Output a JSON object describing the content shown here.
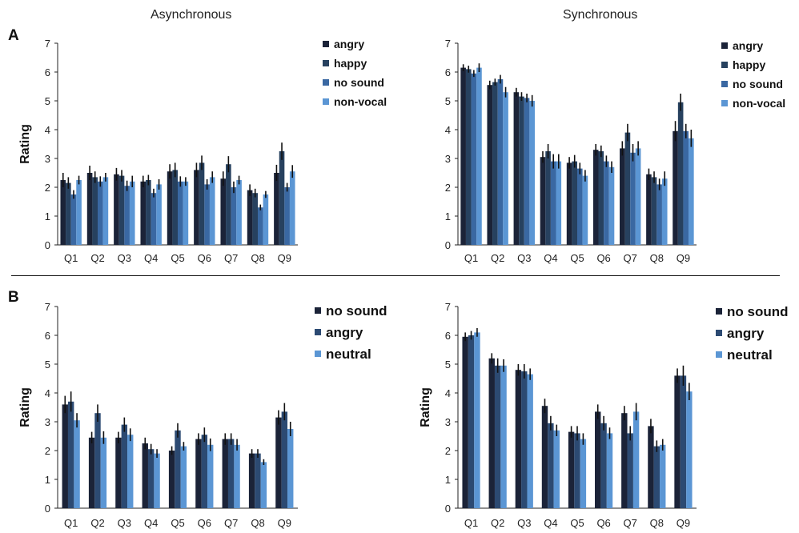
{
  "column_titles": [
    "Asynchronous",
    "Synchronous"
  ],
  "panel_labels": [
    "A",
    "B"
  ],
  "colors": {
    "angry_A": "#1b2338",
    "happy": "#27415f",
    "no_sound_A": "#3a68a2",
    "non_vocal": "#5b96d4",
    "no_sound_B": "#1b2338",
    "angry_B": "#2c4a72",
    "neutral": "#5b96d4",
    "error_bar": "#111111"
  },
  "chart_data": [
    {
      "type": "bar",
      "panel": "A",
      "condition": "Asynchronous",
      "ylabel": "Rating",
      "xlabel": "",
      "ylim": [
        0,
        7
      ],
      "yticks": [
        "0",
        "1",
        "2",
        "3",
        "4",
        "5",
        "6",
        "7"
      ],
      "categories": [
        "Q1",
        "Q2",
        "Q3",
        "Q4",
        "Q5",
        "Q6",
        "Q7",
        "Q8",
        "Q9"
      ],
      "legend_position": "top-right",
      "series": [
        {
          "name": "angry",
          "values": [
            2.25,
            2.5,
            2.45,
            2.2,
            2.55,
            2.6,
            2.3,
            1.9,
            2.5
          ],
          "errors": [
            0.25,
            0.25,
            0.22,
            0.2,
            0.25,
            0.25,
            0.25,
            0.2,
            0.28
          ]
        },
        {
          "name": "happy",
          "values": [
            2.15,
            2.35,
            2.4,
            2.25,
            2.6,
            2.85,
            2.8,
            1.8,
            3.25
          ],
          "errors": [
            0.2,
            0.2,
            0.2,
            0.18,
            0.25,
            0.25,
            0.28,
            0.15,
            0.3
          ]
        },
        {
          "name": "no sound",
          "values": [
            1.75,
            2.2,
            2.05,
            1.8,
            2.2,
            2.1,
            2.0,
            1.3,
            2.0
          ],
          "errors": [
            0.15,
            0.18,
            0.18,
            0.15,
            0.18,
            0.18,
            0.2,
            0.1,
            0.15
          ]
        },
        {
          "name": "non-vocal",
          "values": [
            2.25,
            2.35,
            2.2,
            2.1,
            2.2,
            2.35,
            2.25,
            1.75,
            2.55
          ],
          "errors": [
            0.15,
            0.15,
            0.2,
            0.18,
            0.15,
            0.2,
            0.15,
            0.12,
            0.22
          ]
        }
      ]
    },
    {
      "type": "bar",
      "panel": "A",
      "condition": "Synchronous",
      "ylabel": "",
      "xlabel": "",
      "ylim": [
        0,
        7
      ],
      "yticks": [
        "0",
        "1",
        "2",
        "3",
        "4",
        "5",
        "6",
        "7"
      ],
      "categories": [
        "Q1",
        "Q2",
        "Q3",
        "Q4",
        "Q5",
        "Q6",
        "Q7",
        "Q8",
        "Q9"
      ],
      "legend_position": "top-right",
      "series": [
        {
          "name": "angry",
          "values": [
            6.15,
            5.55,
            5.3,
            3.05,
            2.85,
            3.3,
            3.35,
            2.45,
            3.95
          ],
          "errors": [
            0.12,
            0.15,
            0.15,
            0.2,
            0.2,
            0.2,
            0.25,
            0.2,
            0.35
          ]
        },
        {
          "name": "happy",
          "values": [
            6.1,
            5.65,
            5.15,
            3.25,
            2.9,
            3.25,
            3.9,
            2.35,
            4.95
          ],
          "errors": [
            0.12,
            0.12,
            0.15,
            0.25,
            0.22,
            0.2,
            0.3,
            0.2,
            0.3
          ]
        },
        {
          "name": "no sound",
          "values": [
            5.95,
            5.75,
            5.1,
            2.9,
            2.65,
            2.9,
            3.2,
            2.1,
            3.95
          ],
          "errors": [
            0.12,
            0.15,
            0.15,
            0.25,
            0.2,
            0.2,
            0.3,
            0.2,
            0.25
          ]
        },
        {
          "name": "non-vocal",
          "values": [
            6.15,
            5.3,
            5.0,
            2.9,
            2.4,
            2.7,
            3.35,
            2.3,
            3.7
          ],
          "errors": [
            0.15,
            0.18,
            0.2,
            0.25,
            0.2,
            0.2,
            0.25,
            0.25,
            0.3
          ]
        }
      ]
    },
    {
      "type": "bar",
      "panel": "B",
      "condition": "Asynchronous",
      "ylabel": "Rating",
      "xlabel": "",
      "ylim": [
        0,
        7
      ],
      "yticks": [
        "0",
        "1",
        "2",
        "3",
        "4",
        "5",
        "6",
        "7"
      ],
      "categories": [
        "Q1",
        "Q2",
        "Q3",
        "Q4",
        "Q5",
        "Q6",
        "Q7",
        "Q8",
        "Q9"
      ],
      "legend_position": "top-right",
      "series": [
        {
          "name": "no sound",
          "values": [
            3.6,
            2.45,
            2.45,
            2.25,
            2.0,
            2.4,
            2.4,
            1.9,
            3.15
          ],
          "errors": [
            0.3,
            0.2,
            0.2,
            0.2,
            0.15,
            0.2,
            0.2,
            0.15,
            0.25
          ]
        },
        {
          "name": "angry",
          "values": [
            3.7,
            3.3,
            2.9,
            2.05,
            2.7,
            2.55,
            2.4,
            1.9,
            3.35
          ],
          "errors": [
            0.35,
            0.3,
            0.25,
            0.18,
            0.25,
            0.25,
            0.2,
            0.15,
            0.3
          ]
        },
        {
          "name": "neutral",
          "values": [
            3.05,
            2.45,
            2.55,
            1.9,
            2.15,
            2.2,
            2.2,
            1.6,
            2.75
          ],
          "errors": [
            0.25,
            0.22,
            0.22,
            0.15,
            0.15,
            0.22,
            0.2,
            0.1,
            0.25
          ]
        }
      ]
    },
    {
      "type": "bar",
      "panel": "B",
      "condition": "Synchronous",
      "ylabel": "Rating",
      "xlabel": "",
      "ylim": [
        0,
        7
      ],
      "yticks": [
        "0",
        "1",
        "2",
        "3",
        "4",
        "5",
        "6",
        "7"
      ],
      "categories": [
        "Q1",
        "Q2",
        "Q3",
        "Q4",
        "Q5",
        "Q6",
        "Q7",
        "Q8",
        "Q9"
      ],
      "legend_position": "top-right",
      "series": [
        {
          "name": "no sound",
          "values": [
            5.95,
            5.2,
            4.8,
            3.55,
            2.65,
            3.35,
            3.3,
            2.85,
            4.6
          ],
          "errors": [
            0.15,
            0.18,
            0.2,
            0.25,
            0.2,
            0.25,
            0.25,
            0.25,
            0.25
          ]
        },
        {
          "name": "angry",
          "values": [
            6.0,
            4.95,
            4.75,
            2.95,
            2.6,
            2.95,
            2.6,
            2.15,
            4.6
          ],
          "errors": [
            0.15,
            0.25,
            0.25,
            0.25,
            0.25,
            0.25,
            0.25,
            0.2,
            0.35
          ]
        },
        {
          "name": "neutral",
          "values": [
            6.1,
            4.95,
            4.65,
            2.7,
            2.4,
            2.6,
            3.35,
            2.2,
            4.05
          ],
          "errors": [
            0.15,
            0.22,
            0.2,
            0.2,
            0.2,
            0.2,
            0.3,
            0.2,
            0.3
          ]
        }
      ]
    }
  ]
}
